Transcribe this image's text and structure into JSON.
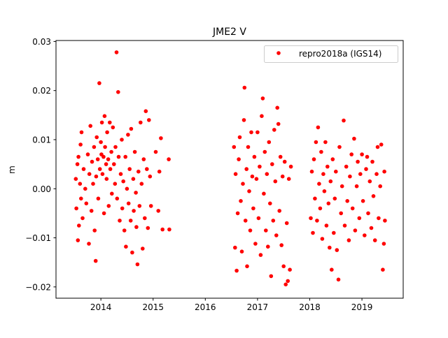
{
  "chart_data": {
    "type": "scatter",
    "title": "JME2 V",
    "xlabel": "",
    "ylabel": "m",
    "xlim": [
      2013.14,
      2019.79
    ],
    "ylim": [
      -0.0223,
      0.0302
    ],
    "xticks": [
      2014,
      2015,
      2016,
      2017,
      2018,
      2019
    ],
    "xtick_labels": [
      "2014",
      "2015",
      "2016",
      "2017",
      "2018",
      "2019"
    ],
    "yticks": [
      0.03,
      0.02,
      0.01,
      0.0,
      -0.01,
      -0.02
    ],
    "ytick_labels": [
      "0.03",
      "0.02",
      "0.01",
      "0.00",
      "−0.01",
      "−0.02"
    ],
    "grid": false,
    "legend": {
      "placement": "top-right",
      "entries": [
        "repro2018a (IGS14)"
      ]
    },
    "series": [
      {
        "name": "repro2018a (IGS14)",
        "color": "#ff0000",
        "points": [
          [
            2013.52,
            0.002
          ],
          [
            2013.53,
            -0.004
          ],
          [
            2013.55,
            0.005
          ],
          [
            2013.56,
            -0.0105
          ],
          [
            2013.57,
            0.0065
          ],
          [
            2013.58,
            -0.0075
          ],
          [
            2013.6,
            0.001
          ],
          [
            2013.61,
            0.009
          ],
          [
            2013.62,
            -0.002
          ],
          [
            2013.63,
            0.0115
          ],
          [
            2013.65,
            -0.006
          ],
          [
            2013.67,
            0.004
          ],
          [
            2013.7,
            0.0
          ],
          [
            2013.72,
            -0.003
          ],
          [
            2013.75,
            0.007
          ],
          [
            2013.77,
            -0.0112
          ],
          [
            2013.78,
            0.003
          ],
          [
            2013.8,
            0.0128
          ],
          [
            2013.82,
            -0.0045
          ],
          [
            2013.83,
            0.0055
          ],
          [
            2013.85,
            0.001
          ],
          [
            2013.87,
            0.0085
          ],
          [
            2013.88,
            -0.0085
          ],
          [
            2013.9,
            -0.0147
          ],
          [
            2013.91,
            0.0025
          ],
          [
            2013.92,
            0.0105
          ],
          [
            2013.94,
            0.006
          ],
          [
            2013.95,
            -0.002
          ],
          [
            2013.97,
            0.0215
          ],
          [
            2013.98,
            0.004
          ],
          [
            2014.0,
            0.0095
          ],
          [
            2014.01,
            0.007
          ],
          [
            2014.02,
            0.0135
          ],
          [
            2014.03,
            0.003
          ],
          [
            2014.05,
            0.0065
          ],
          [
            2014.06,
            -0.005
          ],
          [
            2014.07,
            0.0148
          ],
          [
            2014.08,
            0.0085
          ],
          [
            2014.1,
            0.005
          ],
          [
            2014.11,
            0.002
          ],
          [
            2014.12,
            0.0115
          ],
          [
            2014.14,
            0.006
          ],
          [
            2014.15,
            -0.0035
          ],
          [
            2014.17,
            0.0135
          ],
          [
            2014.18,
            0.004
          ],
          [
            2014.2,
            0.0075
          ],
          [
            2014.21,
            -0.001
          ],
          [
            2014.23,
            0.0125
          ],
          [
            2014.25,
            0.005
          ],
          [
            2014.27,
            0.001
          ],
          [
            2014.28,
            0.0085
          ],
          [
            2014.3,
            0.0278
          ],
          [
            2014.31,
            -0.002
          ],
          [
            2014.33,
            0.0197
          ],
          [
            2014.34,
            0.0065
          ],
          [
            2014.36,
            -0.0065
          ],
          [
            2014.38,
            0.003
          ],
          [
            2014.4,
            0.01
          ],
          [
            2014.41,
            -0.004
          ],
          [
            2014.43,
            0.0015
          ],
          [
            2014.45,
            -0.0085
          ],
          [
            2014.47,
            0.0065
          ],
          [
            2014.48,
            -0.0118
          ],
          [
            2014.5,
            0.0
          ],
          [
            2014.52,
            0.011
          ],
          [
            2014.53,
            -0.003
          ],
          [
            2014.55,
            0.004
          ],
          [
            2014.57,
            -0.0065
          ],
          [
            2014.58,
            0.0122
          ],
          [
            2014.6,
            -0.013
          ],
          [
            2014.62,
            0.002
          ],
          [
            2014.63,
            -0.0045
          ],
          [
            2014.65,
            0.0075
          ],
          [
            2014.67,
            -0.0008
          ],
          [
            2014.68,
            -0.0078
          ],
          [
            2014.7,
            -0.0154
          ],
          [
            2014.72,
            0.0035
          ],
          [
            2014.74,
            -0.0035
          ],
          [
            2014.76,
            0.0135
          ],
          [
            2014.78,
            0.001
          ],
          [
            2014.8,
            -0.0122
          ],
          [
            2014.82,
            0.006
          ],
          [
            2014.84,
            -0.006
          ],
          [
            2014.86,
            0.0158
          ],
          [
            2014.88,
            0.004
          ],
          [
            2014.9,
            -0.008
          ],
          [
            2014.92,
            0.014
          ],
          [
            2014.94,
            0.0025
          ],
          [
            2014.96,
            -0.0035
          ],
          [
            2015.05,
            0.0075
          ],
          [
            2015.1,
            -0.0045
          ],
          [
            2015.12,
            0.0035
          ],
          [
            2015.15,
            0.0103
          ],
          [
            2015.18,
            -0.0083
          ],
          [
            2015.3,
            0.006
          ],
          [
            2015.31,
            -0.0083
          ],
          [
            2016.55,
            0.0085
          ],
          [
            2016.57,
            -0.012
          ],
          [
            2016.58,
            0.003
          ],
          [
            2016.6,
            -0.0167
          ],
          [
            2016.62,
            -0.005
          ],
          [
            2016.64,
            0.006
          ],
          [
            2016.66,
            0.0105
          ],
          [
            2016.68,
            -0.0025
          ],
          [
            2016.7,
            -0.0128
          ],
          [
            2016.72,
            0.001
          ],
          [
            2016.74,
            0.014
          ],
          [
            2016.75,
            0.0206
          ],
          [
            2016.77,
            -0.0065
          ],
          [
            2016.79,
            0.004
          ],
          [
            2016.8,
            -0.0158
          ],
          [
            2016.82,
            0.0085
          ],
          [
            2016.84,
            -0.0005
          ],
          [
            2016.86,
            -0.0085
          ],
          [
            2016.88,
            0.0115
          ],
          [
            2016.9,
            0.0025
          ],
          [
            2016.92,
            -0.004
          ],
          [
            2016.94,
            0.0065
          ],
          [
            2016.96,
            -0.0112
          ],
          [
            2016.98,
            0.002
          ],
          [
            2017.0,
            0.0115
          ],
          [
            2017.02,
            -0.006
          ],
          [
            2017.04,
            0.0045
          ],
          [
            2017.06,
            -0.0135
          ],
          [
            2017.08,
            0.0148
          ],
          [
            2017.1,
            0.0184
          ],
          [
            2017.12,
            -0.001
          ],
          [
            2017.14,
            0.0075
          ],
          [
            2017.16,
            -0.0085
          ],
          [
            2017.18,
            0.003
          ],
          [
            2017.2,
            -0.0118
          ],
          [
            2017.22,
            0.0095
          ],
          [
            2017.24,
            -0.003
          ],
          [
            2017.26,
            -0.0178
          ],
          [
            2017.28,
            0.005
          ],
          [
            2017.3,
            -0.0065
          ],
          [
            2017.32,
            0.012
          ],
          [
            2017.34,
            0.0015
          ],
          [
            2017.36,
            -0.0095
          ],
          [
            2017.38,
            0.0165
          ],
          [
            2017.4,
            0.0132
          ],
          [
            2017.42,
            -0.0045
          ],
          [
            2017.44,
            0.0065
          ],
          [
            2017.46,
            -0.0115
          ],
          [
            2017.48,
            0.0025
          ],
          [
            2017.5,
            -0.0158
          ],
          [
            2017.52,
            0.0055
          ],
          [
            2017.54,
            -0.0195
          ],
          [
            2017.56,
            -0.007
          ],
          [
            2017.58,
            -0.0188
          ],
          [
            2017.6,
            0.002
          ],
          [
            2017.62,
            -0.0165
          ],
          [
            2017.64,
            0.0045
          ],
          [
            2018.02,
            -0.006
          ],
          [
            2018.04,
            0.0035
          ],
          [
            2018.06,
            -0.009
          ],
          [
            2018.08,
            0.006
          ],
          [
            2018.1,
            -0.002
          ],
          [
            2018.12,
            0.0095
          ],
          [
            2018.14,
            -0.0065
          ],
          [
            2018.16,
            0.0125
          ],
          [
            2018.18,
            0.001
          ],
          [
            2018.2,
            -0.004
          ],
          [
            2018.22,
            0.0075
          ],
          [
            2018.24,
            -0.0102
          ],
          [
            2018.26,
            0.003
          ],
          [
            2018.28,
            -0.0005
          ],
          [
            2018.3,
            0.0095
          ],
          [
            2018.32,
            -0.0075
          ],
          [
            2018.34,
            0.0045
          ],
          [
            2018.36,
            -0.003
          ],
          [
            2018.38,
            -0.012
          ],
          [
            2018.4,
            0.0015
          ],
          [
            2018.42,
            -0.0165
          ],
          [
            2018.44,
            0.006
          ],
          [
            2018.46,
            -0.009
          ],
          [
            2018.48,
            -0.002
          ],
          [
            2018.5,
            0.0035
          ],
          [
            2018.52,
            -0.0125
          ],
          [
            2018.55,
            -0.0185
          ],
          [
            2018.57,
            0.0085
          ],
          [
            2018.6,
            -0.005
          ],
          [
            2018.62,
            0.0005
          ],
          [
            2018.65,
            0.0139
          ],
          [
            2018.67,
            -0.0075
          ],
          [
            2018.7,
            0.0045
          ],
          [
            2018.72,
            -0.0025
          ],
          [
            2018.75,
            -0.0105
          ],
          [
            2018.77,
            0.0025
          ],
          [
            2018.8,
            0.007
          ],
          [
            2018.82,
            -0.004
          ],
          [
            2018.85,
            0.0102
          ],
          [
            2018.87,
            -0.0085
          ],
          [
            2018.9,
            0.0005
          ],
          [
            2018.92,
            0.0055
          ],
          [
            2018.95,
            -0.006
          ],
          [
            2018.97,
            0.003
          ],
          [
            2019.0,
            0.007
          ],
          [
            2019.02,
            -0.0025
          ],
          [
            2019.05,
            -0.0095
          ],
          [
            2019.08,
            0.004
          ],
          [
            2019.1,
            0.0065
          ],
          [
            2019.12,
            -0.005
          ],
          [
            2019.15,
            0.0015
          ],
          [
            2019.18,
            -0.008
          ],
          [
            2019.2,
            0.0055
          ],
          [
            2019.22,
            -0.0015
          ],
          [
            2019.25,
            -0.0105
          ],
          [
            2019.28,
            0.003
          ],
          [
            2019.3,
            0.0085
          ],
          [
            2019.32,
            -0.006
          ],
          [
            2019.35,
            0.0005
          ],
          [
            2019.37,
            0.009
          ],
          [
            2019.4,
            -0.0165
          ],
          [
            2019.42,
            -0.0112
          ],
          [
            2019.43,
            0.0035
          ],
          [
            2019.44,
            -0.0065
          ]
        ]
      }
    ]
  }
}
